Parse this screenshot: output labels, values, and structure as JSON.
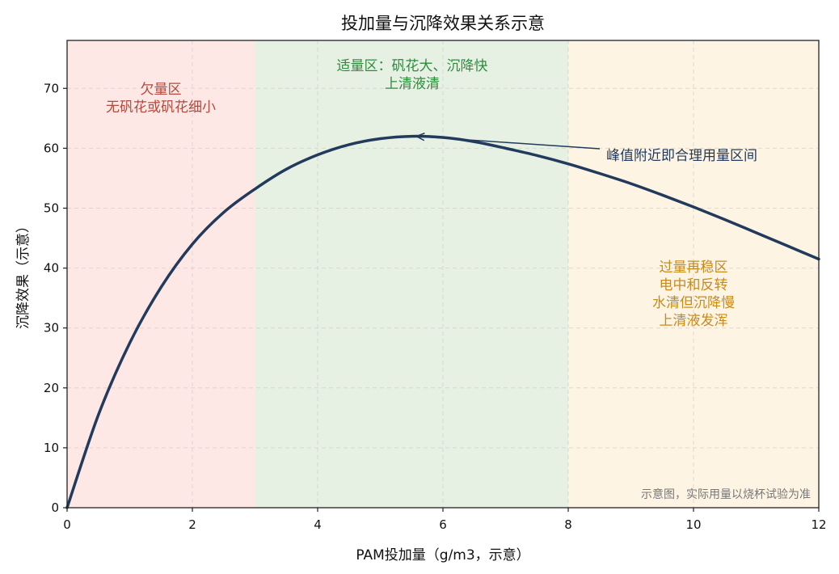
{
  "chart_data": {
    "type": "line",
    "title": "投加量与沉降效果关系示意",
    "xlabel": "PAM投加量（g/m3，示意）",
    "ylabel": "沉降效果（示意）",
    "xlim": [
      0,
      12
    ],
    "ylim": [
      0,
      78
    ],
    "xticks": [
      "0",
      "2",
      "4",
      "6",
      "8",
      "10",
      "12"
    ],
    "yticks": [
      "0",
      "10",
      "20",
      "30",
      "40",
      "50",
      "60",
      "70"
    ],
    "grid": true,
    "regions": [
      {
        "x_range": [
          0,
          3
        ],
        "color": "#fde8e6",
        "label_lines": [
          "欠量区",
          "无矾花或矾花细小"
        ],
        "label_color": "#b5483c"
      },
      {
        "x_range": [
          3,
          8
        ],
        "color": "#e6f1e3",
        "label_lines": [
          "适量区：矾花大、沉降快",
          "上清液清"
        ],
        "label_color": "#2e8b3e"
      },
      {
        "x_range": [
          8,
          12
        ],
        "color": "#fdf4e3",
        "label_lines": [
          "过量再稳区",
          "电中和反转",
          "水清但沉降慢",
          "上清液发浑"
        ],
        "label_color": "#c98a1c"
      }
    ],
    "series": [
      {
        "color": "#223a5c",
        "x": [
          0,
          0.5,
          1,
          1.5,
          2,
          2.5,
          3,
          3.5,
          4,
          4.5,
          5,
          5.5,
          6,
          6.5,
          7,
          7.5,
          8,
          8.5,
          9,
          9.5,
          10,
          10.5,
          11,
          11.5,
          12
        ],
        "y": [
          0,
          15.5,
          27.5,
          36.8,
          44.0,
          49.3,
          53.2,
          56.5,
          58.9,
          60.6,
          61.6,
          62.0,
          61.8,
          61.1,
          60.0,
          58.8,
          57.4,
          55.8,
          54.1,
          52.2,
          50.2,
          48.1,
          45.9,
          43.7,
          41.5
        ]
      }
    ],
    "annotations": [
      {
        "text": "峰值附近即合理用量区间",
        "xy": [
          5.55,
          62.0
        ],
        "color": "#223a5c"
      }
    ],
    "footnote": "示意图，实际用量以烧杯试验为准"
  }
}
